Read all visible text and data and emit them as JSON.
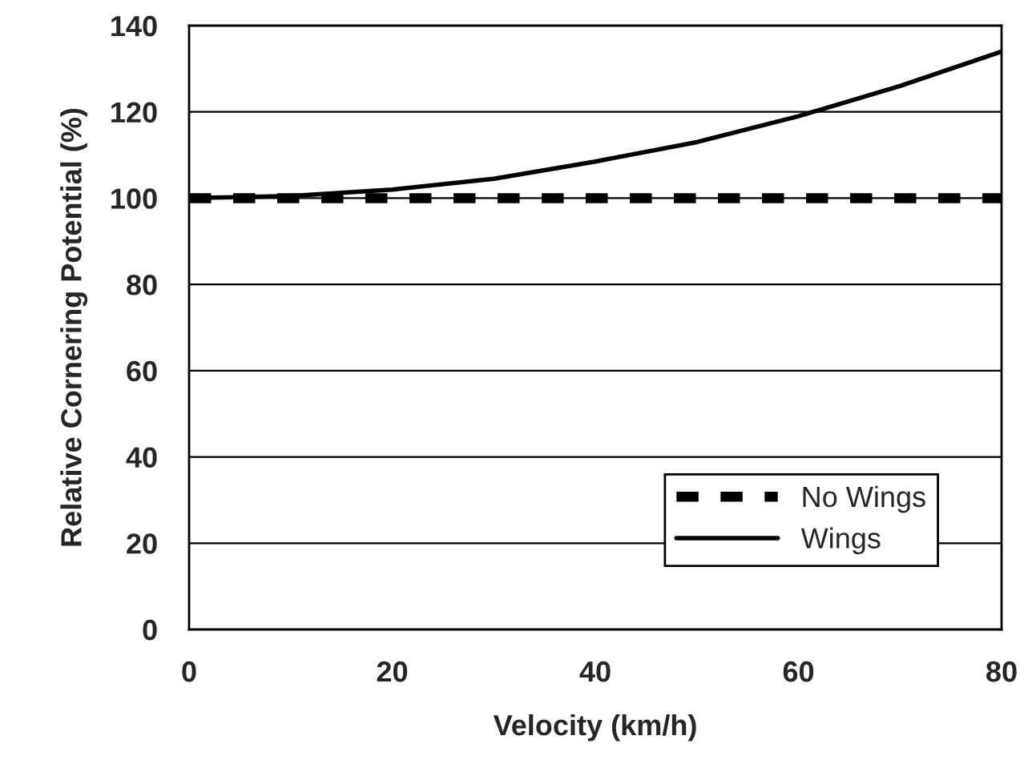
{
  "chart_data": {
    "type": "line",
    "xlabel": "Velocity (km/h)",
    "ylabel": "Relative Cornering Potential (%)",
    "x": [
      0,
      10,
      20,
      30,
      40,
      50,
      60,
      70,
      80
    ],
    "series": [
      {
        "name": "No Wings",
        "color": "#000000",
        "line_style": "dashed",
        "values": [
          100,
          100,
          100,
          100,
          100,
          100,
          100,
          100,
          100
        ]
      },
      {
        "name": "Wings",
        "color": "#000000",
        "line_style": "solid",
        "values": [
          100,
          100.5,
          102,
          104.5,
          108.5,
          113,
          119,
          126,
          134
        ]
      }
    ],
    "xlim": [
      0,
      80
    ],
    "xticks": [
      0,
      20,
      40,
      60,
      80
    ],
    "ylim": [
      0,
      140
    ],
    "yticks": [
      0,
      20,
      40,
      60,
      80,
      100,
      120,
      140
    ],
    "grid": "y",
    "legend": "lower right"
  }
}
